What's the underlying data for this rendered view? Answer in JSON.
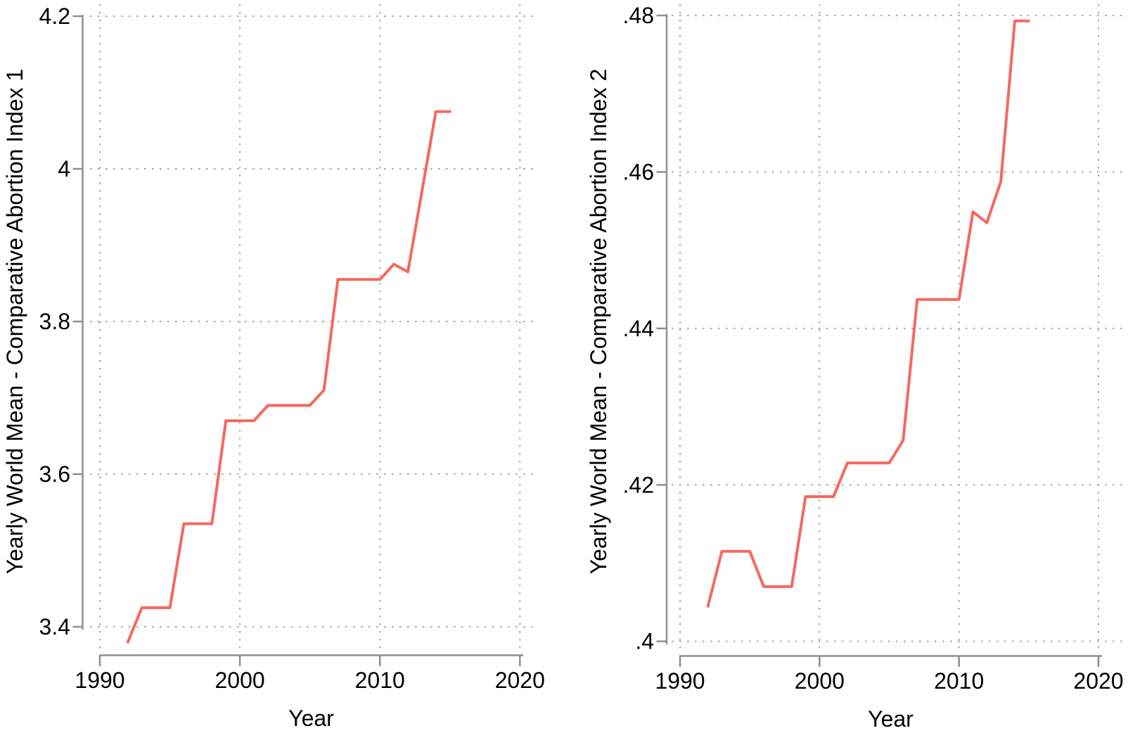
{
  "figure": {
    "description": "Two side-by-side Stata-style line charts of yearly world means of comparative abortion indices",
    "background": "#ffffff"
  },
  "colors": {
    "line": "#f5685e",
    "axis": "#8f8f8f",
    "grid": "#a6a6a6",
    "text": "#000000",
    "background": "#ffffff"
  },
  "chart_data": [
    {
      "type": "line",
      "title": "",
      "xlabel": "Year",
      "ylabel": "Yearly World Mean - Comparative Abortion Index 1",
      "xlim": [
        1990,
        2020
      ],
      "ylim": [
        3.4,
        4.2
      ],
      "x_ticks": [
        1990,
        2000,
        2010,
        2020
      ],
      "x_tick_labels": [
        "1990",
        "2000",
        "2010",
        "2020"
      ],
      "y_ticks": [
        3.4,
        3.6,
        3.8,
        4.0,
        4.2
      ],
      "y_tick_labels": [
        "3.4",
        "3.6",
        "3.8",
        "4",
        "4.2"
      ],
      "grid": "dotted-both-axes",
      "legend": "none",
      "series": [
        {
          "name": "Comparative Abortion Index 1",
          "x": [
            1992,
            1993,
            1994,
            1995,
            1996,
            1997,
            1998,
            1999,
            2000,
            2001,
            2002,
            2003,
            2004,
            2005,
            2006,
            2007,
            2008,
            2009,
            2010,
            2011,
            2012,
            2013,
            2014,
            2015
          ],
          "y": [
            3.38,
            3.425,
            3.425,
            3.425,
            3.535,
            3.535,
            3.535,
            3.67,
            3.67,
            3.67,
            3.69,
            3.69,
            3.69,
            3.69,
            3.71,
            3.855,
            3.855,
            3.855,
            3.855,
            3.875,
            3.865,
            3.97,
            4.075,
            4.075
          ]
        }
      ]
    },
    {
      "type": "line",
      "title": "",
      "xlabel": "Year",
      "ylabel": "Yearly World Mean - Comparative Abortion Index 2",
      "xlim": [
        1990,
        2020
      ],
      "ylim": [
        0.4,
        0.48
      ],
      "x_ticks": [
        1990,
        2000,
        2010,
        2020
      ],
      "x_tick_labels": [
        "1990",
        "2000",
        "2010",
        "2020"
      ],
      "y_ticks": [
        0.4,
        0.42,
        0.44,
        0.46,
        0.48
      ],
      "y_tick_labels": [
        ".4",
        ".42",
        ".44",
        ".46",
        ".48"
      ],
      "grid": "dotted-both-axes",
      "legend": "none",
      "series": [
        {
          "name": "Comparative Abortion Index 2",
          "x": [
            1992,
            1993,
            1994,
            1995,
            1996,
            1997,
            1998,
            1999,
            2000,
            2001,
            2002,
            2003,
            2004,
            2005,
            2006,
            2007,
            2008,
            2009,
            2010,
            2011,
            2012,
            2013,
            2014,
            2015
          ],
          "y": [
            0.4045,
            0.4115,
            0.4115,
            0.4115,
            0.407,
            0.407,
            0.407,
            0.4185,
            0.4185,
            0.4185,
            0.4228,
            0.4228,
            0.4228,
            0.4228,
            0.4257,
            0.4437,
            0.4437,
            0.4437,
            0.4437,
            0.4549,
            0.4535,
            0.4588,
            0.4793,
            0.4793
          ]
        }
      ]
    }
  ]
}
